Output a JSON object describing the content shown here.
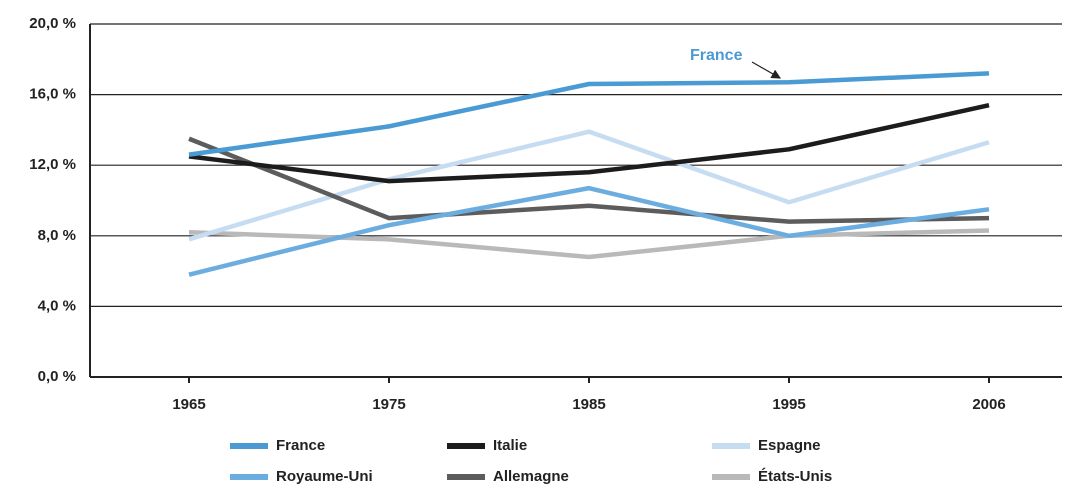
{
  "chart_data": {
    "type": "line",
    "categories": [
      "1965",
      "1975",
      "1985",
      "1995",
      "2006"
    ],
    "series": [
      {
        "name": "France",
        "color": "#4a9bd3",
        "values": [
          12.6,
          14.2,
          16.6,
          16.7,
          17.2
        ]
      },
      {
        "name": "Italie",
        "color": "#1c1c1c",
        "values": [
          12.5,
          11.1,
          11.6,
          12.9,
          15.4
        ]
      },
      {
        "name": "Espagne",
        "color": "#c6ddf1",
        "values": [
          7.8,
          11.2,
          13.9,
          9.9,
          13.3
        ]
      },
      {
        "name": "Royaume-Uni",
        "color": "#6cade0",
        "values": [
          5.8,
          8.6,
          10.7,
          8.0,
          9.5
        ]
      },
      {
        "name": "Allemagne",
        "color": "#5c5c5c",
        "values": [
          13.5,
          9.0,
          9.7,
          8.8,
          9.0
        ]
      },
      {
        "name": "États-Unis",
        "color": "#b9b9b9",
        "values": [
          8.2,
          7.8,
          6.8,
          8.0,
          8.3
        ]
      }
    ],
    "ylim": [
      0,
      20
    ],
    "yticks": [
      {
        "value": 0,
        "label": "0,0 %"
      },
      {
        "value": 4,
        "label": "4,0 %"
      },
      {
        "value": 8,
        "label": "8,0 %"
      },
      {
        "value": 12,
        "label": "12,0 %"
      },
      {
        "value": 16,
        "label": "16,0 %"
      },
      {
        "value": 20,
        "label": "20,0 %"
      }
    ],
    "grid": true,
    "annotations": [
      {
        "text": "France",
        "series": 0
      }
    ]
  }
}
